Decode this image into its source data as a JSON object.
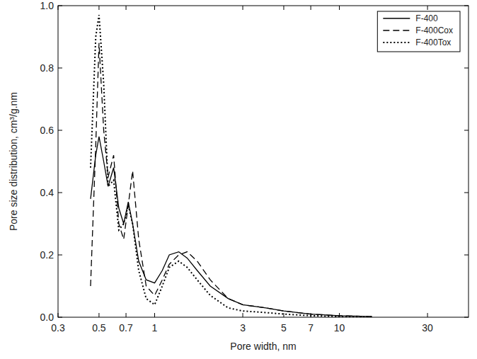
{
  "chart_data": {
    "type": "line",
    "x_label": "Pore width, nm",
    "y_label": "Pore size distribution, cm³/g.nm",
    "log": "x",
    "legend": "top-right",
    "grid": false,
    "x": [
      0.45,
      0.48,
      0.5,
      0.53,
      0.56,
      0.6,
      0.64,
      0.68,
      0.72,
      0.76,
      0.82,
      0.9,
      1.0,
      1.1,
      1.2,
      1.35,
      1.5,
      1.7,
      2,
      2.5,
      3,
      4,
      5,
      7,
      10,
      15
    ],
    "series": [
      {
        "name": "F-400",
        "color": "#000000",
        "line_style": "solid",
        "values": [
          0.38,
          0.52,
          0.58,
          0.5,
          0.42,
          0.48,
          0.35,
          0.3,
          0.37,
          0.3,
          0.18,
          0.12,
          0.11,
          0.15,
          0.2,
          0.21,
          0.19,
          0.15,
          0.1,
          0.06,
          0.04,
          0.03,
          0.02,
          0.01,
          0.005,
          0.002
        ]
      },
      {
        "name": "F-400Cox",
        "color": "#000000",
        "line_style": "dashed",
        "values": [
          0.1,
          0.55,
          0.88,
          0.6,
          0.45,
          0.52,
          0.3,
          0.25,
          0.36,
          0.47,
          0.25,
          0.1,
          0.07,
          0.12,
          0.17,
          0.2,
          0.21,
          0.18,
          0.12,
          0.06,
          0.04,
          0.03,
          0.02,
          0.01,
          0.005,
          0.002
        ]
      },
      {
        "name": "F-400Tox",
        "color": "#000000",
        "line_style": "dotted",
        "values": [
          0.48,
          0.9,
          0.97,
          0.75,
          0.42,
          0.44,
          0.28,
          0.3,
          0.36,
          0.3,
          0.15,
          0.06,
          0.04,
          0.1,
          0.16,
          0.18,
          0.16,
          0.12,
          0.07,
          0.03,
          0.02,
          0.015,
          0.01,
          0.005,
          0.002,
          0.001
        ]
      }
    ],
    "xlim": [
      0.3,
      50
    ],
    "xticks": [
      0.3,
      0.5,
      0.7,
      1,
      3,
      5,
      7,
      10,
      30
    ],
    "ylim": [
      0,
      1
    ],
    "yticks": [
      {
        "value": 0,
        "label": "0.0"
      },
      0.2,
      0.4,
      0.6,
      0.8,
      {
        "value": 1,
        "label": "1.0"
      }
    ]
  }
}
